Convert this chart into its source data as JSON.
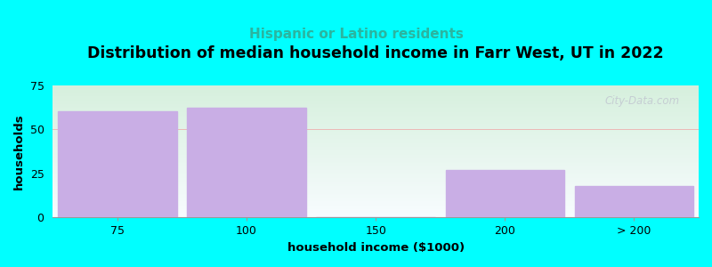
{
  "title": "Distribution of median household income in Farr West, UT in 2022",
  "subtitle": "Hispanic or Latino residents",
  "xlabel": "household income ($1000)",
  "ylabel": "households",
  "categories": [
    "75",
    "100",
    "150",
    "200",
    "> 200"
  ],
  "values": [
    60,
    62,
    0,
    27,
    18
  ],
  "bar_color": "#c9aee5",
  "background_color": "#00ffff",
  "plot_bg_color_top_left": "#d6f0dd",
  "plot_bg_color_bottom_right": "#f8f8ff",
  "title_fontsize": 12.5,
  "subtitle_fontsize": 11,
  "subtitle_color": "#2ab5a0",
  "axis_label_fontsize": 9.5,
  "tick_fontsize": 9,
  "ylim": [
    0,
    75
  ],
  "yticks": [
    0,
    25,
    50,
    75
  ],
  "grid_color": "#ffaaaa",
  "watermark": "City-Data.com"
}
